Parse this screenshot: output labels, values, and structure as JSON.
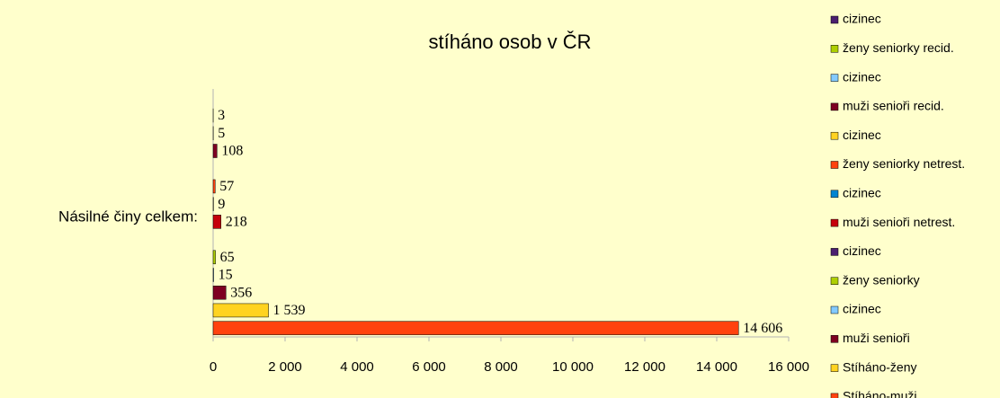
{
  "chart_data": {
    "type": "bar",
    "orientation": "horizontal",
    "title": "stíháno osob v ČR",
    "categories": [
      "Násilné činy celkem:"
    ],
    "series": [
      {
        "name": "Stíháno-muži",
        "color": "#ff420e",
        "values": [
          14606
        ],
        "value_labels": [
          "14 606"
        ]
      },
      {
        "name": "Stíháno-ženy",
        "color": "#ffd320",
        "values": [
          1539
        ],
        "value_labels": [
          "1 539"
        ]
      },
      {
        "name": "muži senioři",
        "color": "#7e0021",
        "values": [
          356
        ]
      },
      {
        "name": "cizinec",
        "color": "#83caff",
        "values": [
          15
        ]
      },
      {
        "name": "ženy seniorky",
        "color": "#aecf00",
        "values": [
          65
        ]
      },
      {
        "name": "cizinec",
        "color": "#4b1f6f",
        "values": [
          null
        ]
      },
      {
        "name": "muži senioři netrest.",
        "color": "#c5000b",
        "values": [
          218
        ]
      },
      {
        "name": "cizinec",
        "color": "#0084d1",
        "values": [
          9
        ]
      },
      {
        "name": "ženy seniorky netrest.",
        "color": "#ff420e",
        "values": [
          57
        ]
      },
      {
        "name": "cizinec",
        "color": "#ffd320",
        "values": [
          null
        ]
      },
      {
        "name": "muži senioři recid.",
        "color": "#7e0021",
        "values": [
          108
        ]
      },
      {
        "name": "cizinec",
        "color": "#83caff",
        "values": [
          5
        ]
      },
      {
        "name": "ženy seniorky recid.",
        "color": "#aecf00",
        "values": [
          3
        ]
      },
      {
        "name": "cizinec",
        "color": "#4b1f6f",
        "values": [
          null
        ]
      }
    ],
    "xlim": [
      0,
      16000
    ],
    "xticks": [
      0,
      {
        "value": 2000,
        "label": "2 000"
      },
      {
        "value": 4000,
        "label": "4 000"
      },
      {
        "value": 6000,
        "label": "6 000"
      },
      {
        "value": 8000,
        "label": "8 000"
      },
      {
        "value": 10000,
        "label": "10 000"
      },
      {
        "value": 12000,
        "label": "12 000"
      },
      {
        "value": 14000,
        "label": "14 000"
      },
      {
        "value": 16000,
        "label": "16 000"
      }
    ],
    "grid": false,
    "legend": "right"
  }
}
